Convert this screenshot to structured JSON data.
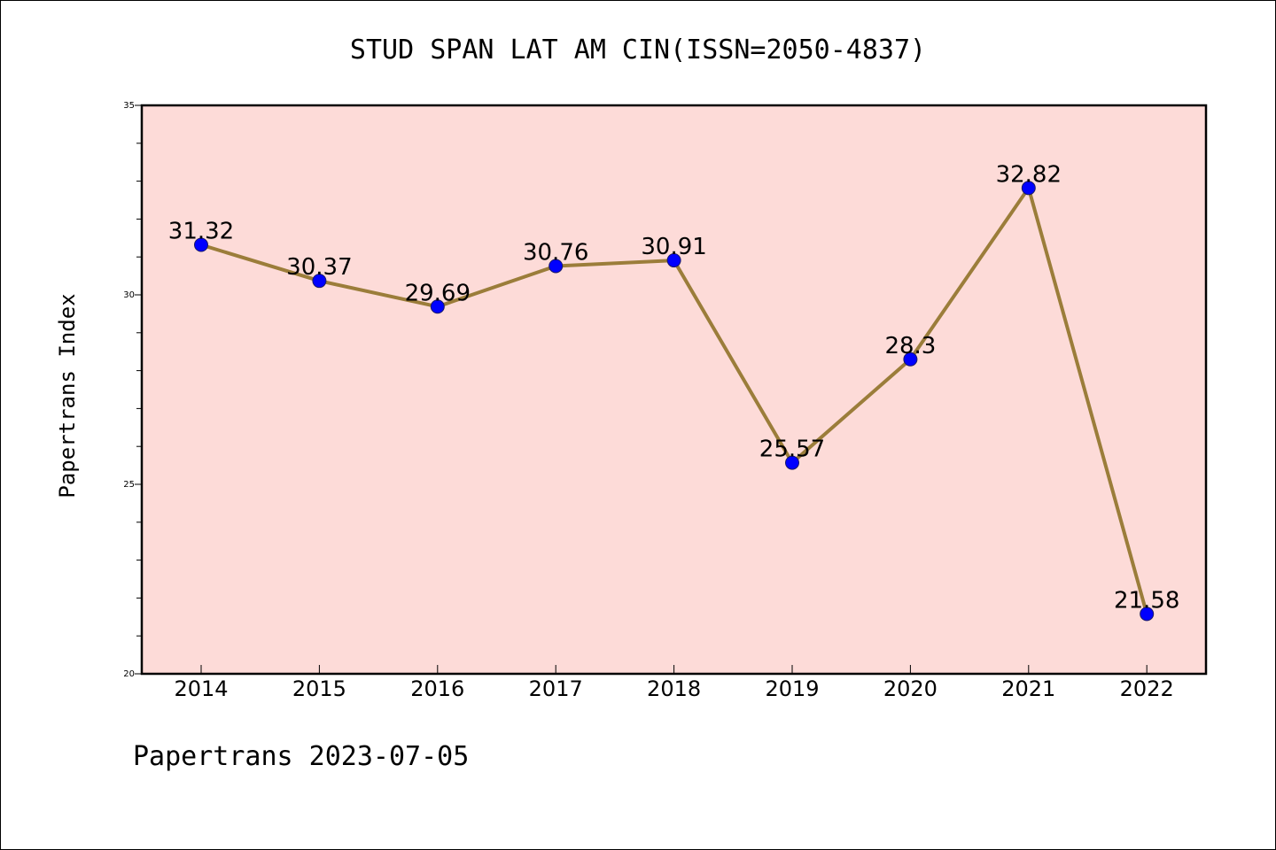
{
  "chart_data": {
    "type": "line",
    "title": "STUD SPAN LAT AM CIN(ISSN=2050-4837)",
    "ylabel": "Papertrans Index",
    "xlabel": "",
    "categories": [
      "2014",
      "2015",
      "2016",
      "2017",
      "2018",
      "2019",
      "2020",
      "2021",
      "2022"
    ],
    "series": [
      {
        "values": [
          31.32,
          30.37,
          29.69,
          30.76,
          30.91,
          25.57,
          28.3,
          32.82,
          21.58
        ],
        "labels": [
          "31.32",
          "30.37",
          "29.69",
          "30.76",
          "30.91",
          "25.57",
          "28.3",
          "32.82",
          "21.58"
        ]
      }
    ],
    "ylim": [
      20,
      35
    ],
    "yticks": [
      20,
      25,
      30,
      35
    ],
    "ytick_labels": [
      "20",
      "25",
      "30",
      "35"
    ],
    "grid": false,
    "colors": {
      "plot_background": "#fddbd8",
      "line": "#9b7d3a",
      "marker": "#0000ff",
      "axis": "#000000"
    }
  },
  "footer": {
    "text": "Papertrans 2023-07-05"
  }
}
